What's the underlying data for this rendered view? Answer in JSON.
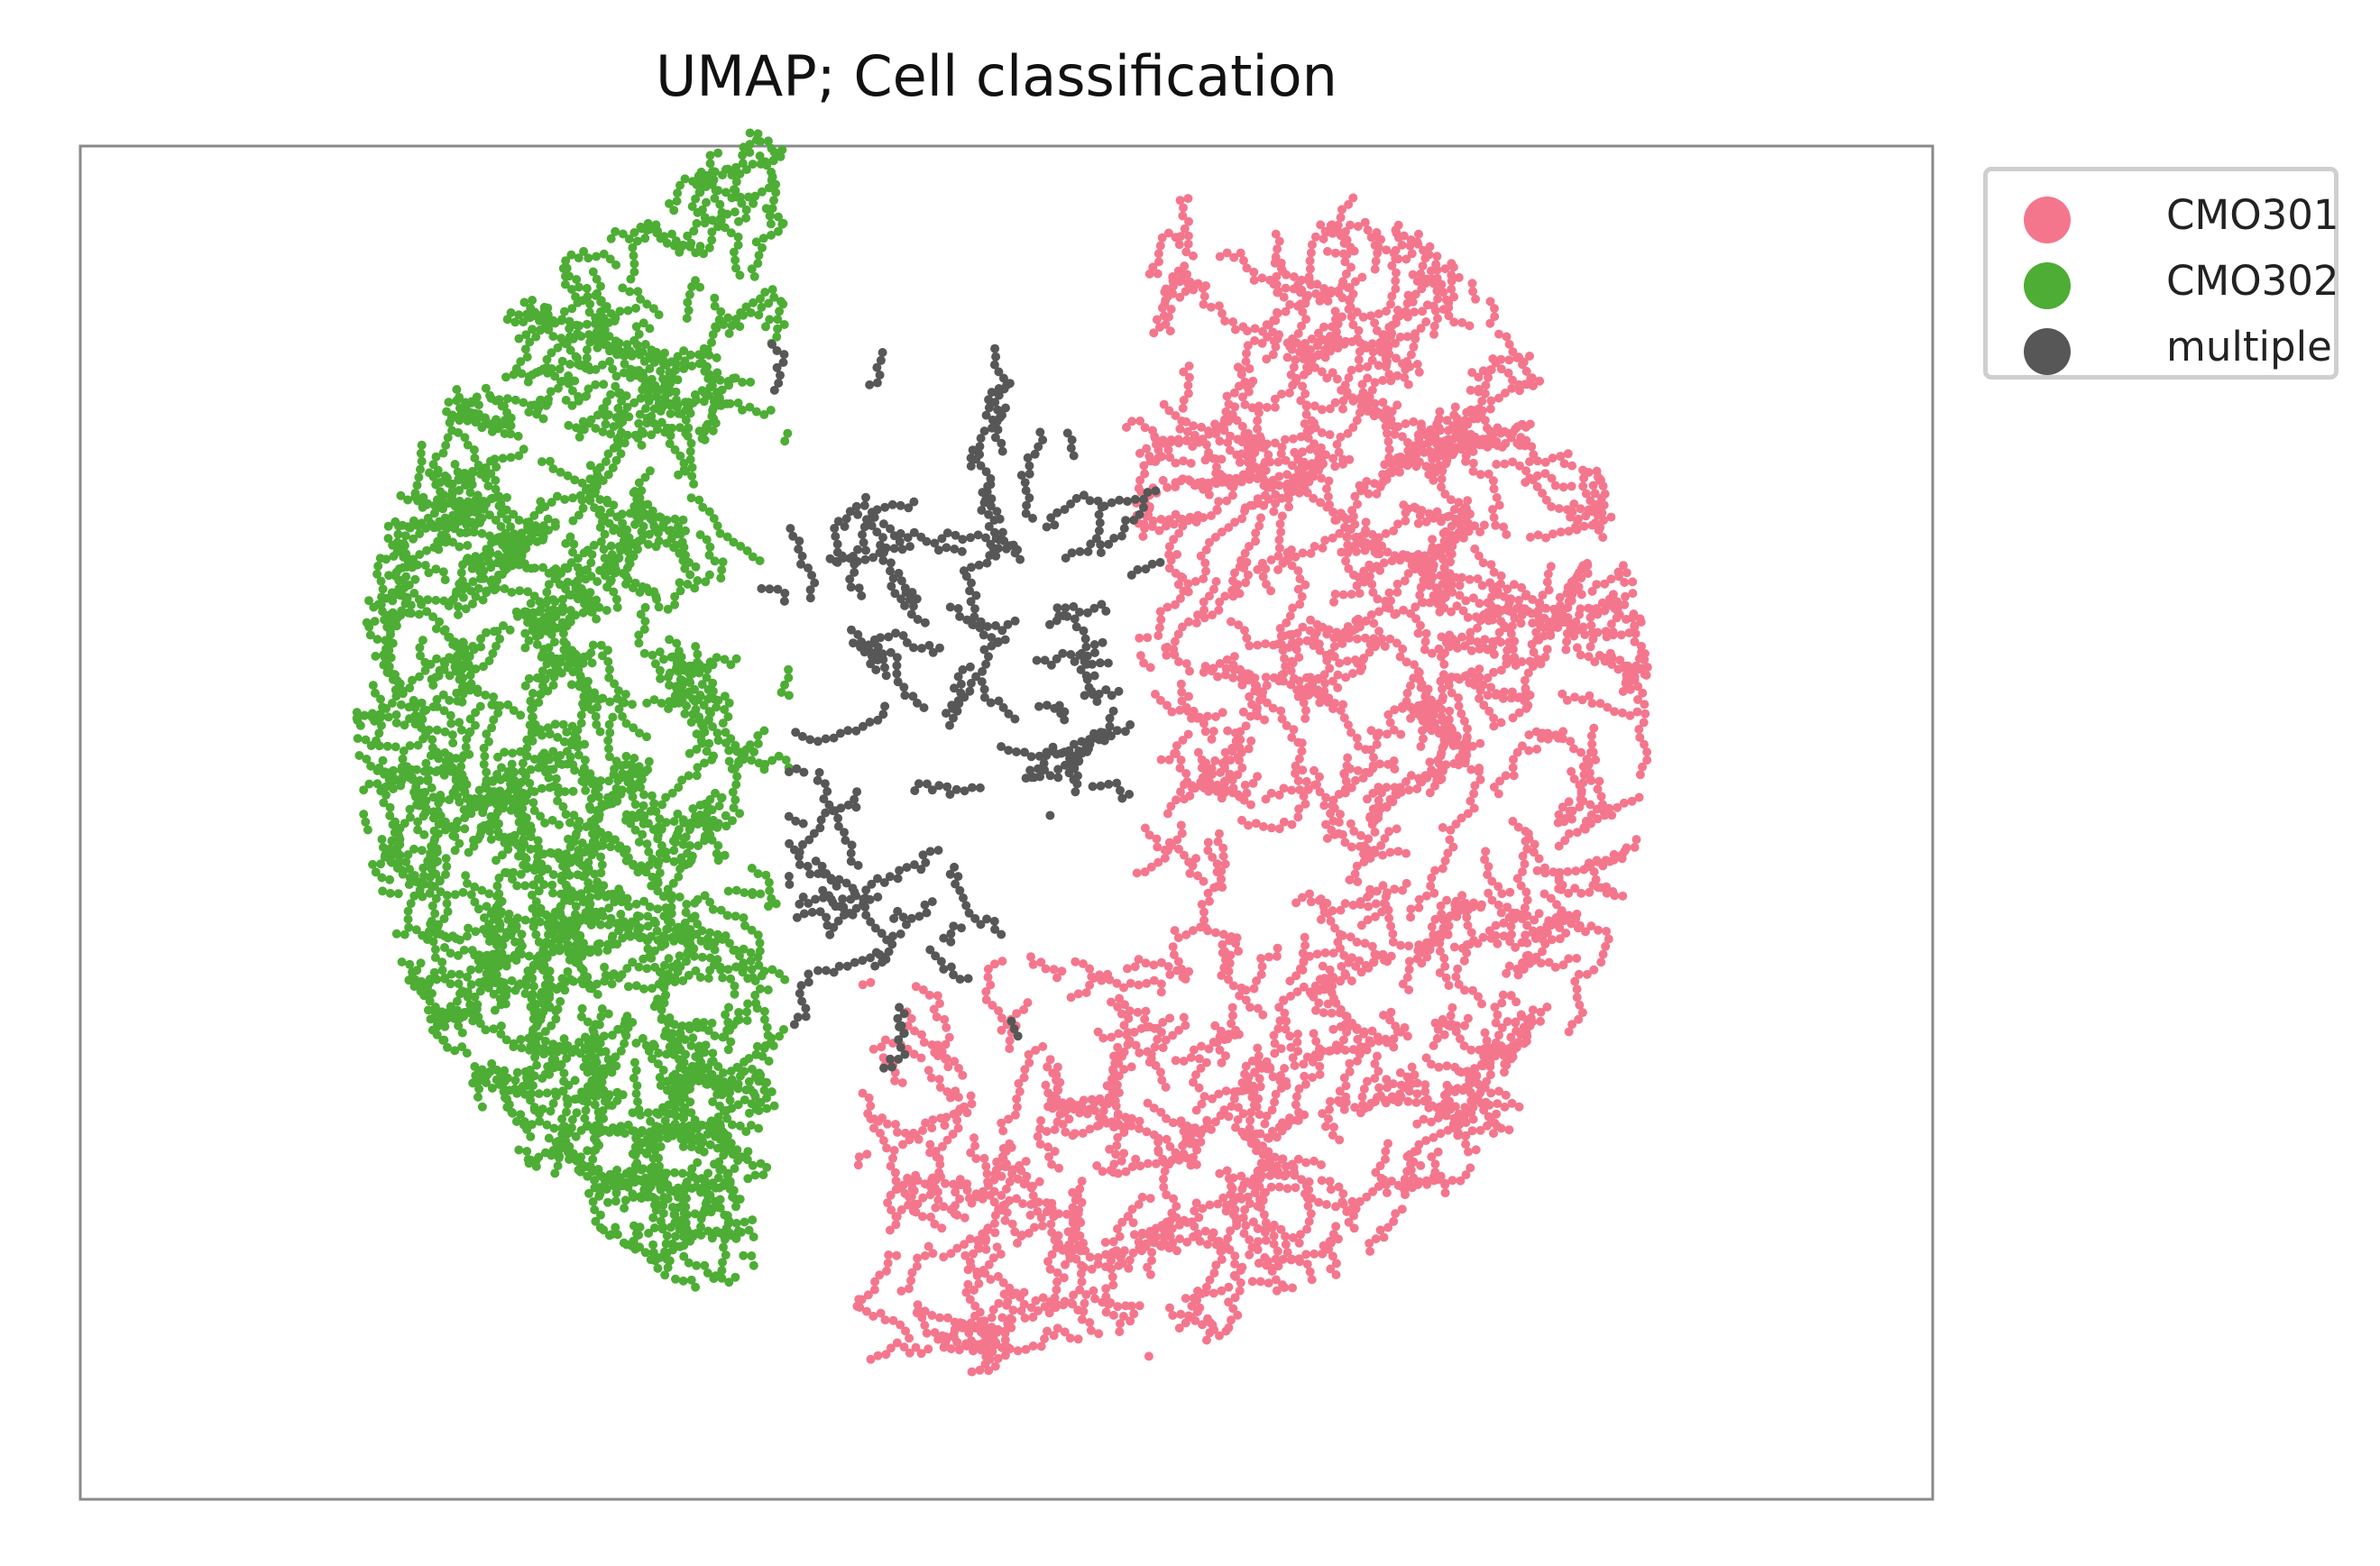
{
  "chart_data": {
    "type": "scatter",
    "title": "UMAP; Cell classification",
    "xlabel": "",
    "ylabel": "",
    "axes_ticks": false,
    "grid": false,
    "legend_position": "outside-top-right",
    "series": [
      {
        "name": "CMO301",
        "color": "#f4768d",
        "shape": "right half-disc / crescent",
        "sample_points": [
          [
            7.5,
            9.3
          ],
          [
            8.3,
            8.7
          ],
          [
            9.8,
            5.6
          ],
          [
            10.6,
            4.8
          ],
          [
            9.6,
            2.4
          ],
          [
            8.0,
            1.3
          ],
          [
            5.6,
            1.0
          ],
          [
            5.2,
            3.3
          ],
          [
            5.9,
            4.8
          ],
          [
            6.3,
            7.6
          ],
          [
            7.9,
            6.3
          ],
          [
            9.0,
            4.6
          ],
          [
            7.2,
            2.8
          ],
          [
            6.6,
            5.4
          ],
          [
            8.8,
            7.3
          ],
          [
            8.5,
            3.6
          ],
          [
            10.0,
            3.7
          ],
          [
            6.0,
            2.2
          ],
          [
            9.3,
            6.6
          ],
          [
            7.4,
            8.1
          ]
        ]
      },
      {
        "name": "CMO302",
        "color": "#4dad34",
        "shape": "left half-disc / crescent",
        "sample_points": [
          [
            3.8,
            9.4
          ],
          [
            2.4,
            9.0
          ],
          [
            1.2,
            7.1
          ],
          [
            0.6,
            4.7
          ],
          [
            0.8,
            2.7
          ],
          [
            1.9,
            1.2
          ],
          [
            3.9,
            0.2
          ],
          [
            4.3,
            0.6
          ],
          [
            3.8,
            1.7
          ],
          [
            3.2,
            4.4
          ],
          [
            3.4,
            7.8
          ],
          [
            2.5,
            5.5
          ],
          [
            1.8,
            3.3
          ],
          [
            2.8,
            2.0
          ],
          [
            1.9,
            7.9
          ],
          [
            2.9,
            6.6
          ],
          [
            1.0,
            6.0
          ],
          [
            3.0,
            3.1
          ],
          [
            2.2,
            4.2
          ],
          [
            4.3,
            2.5
          ]
        ]
      },
      {
        "name": "multiple",
        "color": "#575757",
        "shape": "central branching band",
        "sample_points": [
          [
            4.1,
            8.5
          ],
          [
            4.3,
            7.2
          ],
          [
            4.8,
            7.1
          ],
          [
            5.4,
            6.6
          ],
          [
            6.0,
            6.7
          ],
          [
            6.4,
            6.1
          ],
          [
            5.0,
            5.5
          ],
          [
            4.5,
            6.2
          ],
          [
            3.6,
            5.5
          ],
          [
            3.9,
            5.0
          ],
          [
            4.7,
            5.1
          ],
          [
            5.4,
            4.6
          ],
          [
            6.0,
            5.2
          ],
          [
            5.6,
            3.8
          ],
          [
            5.0,
            4.3
          ],
          [
            4.4,
            3.9
          ],
          [
            4.6,
            2.7
          ],
          [
            4.9,
            3.1
          ],
          [
            5.5,
            3.4
          ],
          [
            6.4,
            7.3
          ]
        ]
      }
    ]
  }
}
